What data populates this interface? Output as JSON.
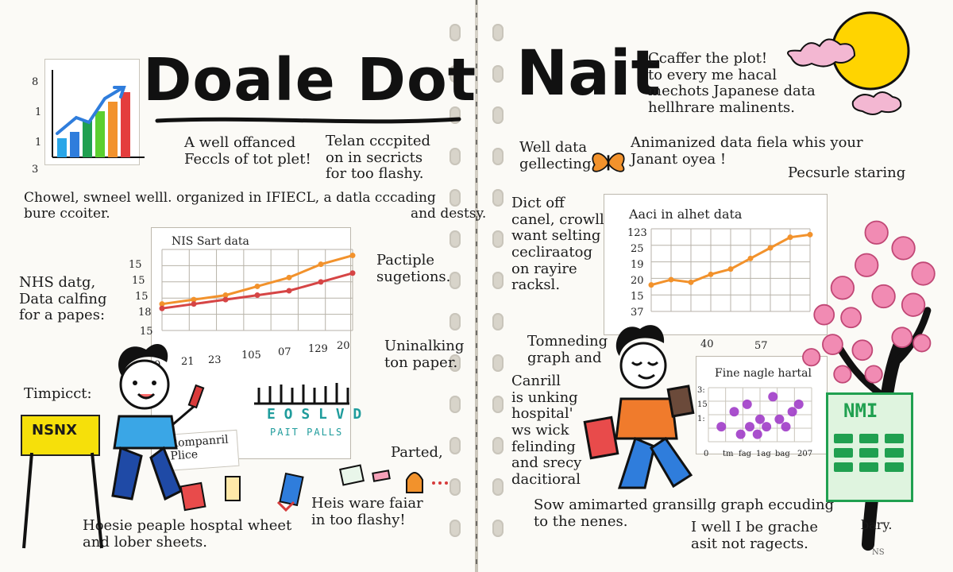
{
  "left": {
    "title": "Doale Dot",
    "notes": {
      "n1": "A well offanced\nFeccls of tot plet!",
      "n2": "Telan cccpited\non in secricts\nfor too flashy.",
      "n3": "Chowel, swneel welll. organized in IFIECL, a datla cccading\nbure ccoiter.                                                                      and destsy.",
      "n4": "NHS datg,\nData calfing\nfor a papes:",
      "n5": "Pactiple\nsugetions.",
      "n6": "Uninalking\nton paper.",
      "n7": "Timpicct:",
      "n8": "Parted,",
      "n9": "Heis ware faiar\nin too flashy!",
      "n10": "Hoesie peaple hosptal wheet\nand lober sheets."
    },
    "sign": "NSNX",
    "card_text": "Rompanril\nPlice",
    "ticker": "E O S L V D",
    "ticker_small": "PAIT PALLS",
    "mini_chart": {
      "yticks": [
        "8",
        "1",
        "1",
        "3"
      ]
    },
    "chart_title": "NIS Sart data",
    "chart_ticks_y": [
      "15",
      "15",
      "15",
      "18",
      "15"
    ],
    "chart_ticks_x": [
      "0",
      "21",
      "23",
      "105",
      "07",
      "129",
      "20"
    ]
  },
  "right": {
    "title": "Nait",
    "notes": {
      "r1": "Ccaffer the plot!\nto every me hacal\nmechots Japanese data\nhellhrare malinents.",
      "r2": "Well data\ngellecting",
      "r3": "Animanized data fiela whis your\nJanant oyea !",
      "r4": "Pecsurle staring",
      "r5": "Dict off\ncanel, crowll\nwant selting\ncecliraatog\non rayire\nracksl.",
      "r6": "Tomneding\ngraph and",
      "r7": "Canrill\nis unking\nhospital'\nws wick\nfelinding\nand srecy\ndacitioral",
      "r8": "Sow amimarted gransillg graph eccuding\nto the nenes.",
      "r9": "I well I be grache\nasit not ragects.",
      "r10": "bary."
    },
    "chart_title": "Aaci in alhet data",
    "chart_ticks_y": [
      "123",
      "25",
      "19",
      "20",
      "15",
      "37"
    ],
    "chart_ticks_x": [
      "40",
      "57"
    ],
    "inset_title": "Fine nagle hartal",
    "inset_ticks_y": [
      "3:",
      "15",
      "1:"
    ],
    "inset_ticks_x": [
      "0",
      "tm",
      "fag",
      "1ag",
      "bag",
      "207"
    ],
    "calc_text": "NMI",
    "tiny": "NS"
  },
  "chart_data": [
    {
      "type": "line",
      "title": "NIS Sart data",
      "x": [
        "0",
        "21",
        "23",
        "105",
        "07",
        "129",
        "20"
      ],
      "series": [
        {
          "values": [
            12,
            14,
            16,
            20,
            24,
            30,
            34
          ]
        },
        {
          "values": [
            10,
            12,
            14,
            16,
            18,
            22,
            26
          ]
        }
      ],
      "ylim": [
        0,
        36
      ]
    },
    {
      "type": "line",
      "title": "Aaci in alhet data",
      "x": [
        0,
        1,
        2,
        3,
        4,
        5,
        6,
        7,
        8
      ],
      "series": [
        {
          "values": [
            10,
            12,
            11,
            14,
            16,
            20,
            24,
            28,
            29
          ]
        }
      ],
      "ylim": [
        0,
        30
      ]
    },
    {
      "type": "scatter",
      "title": "Fine nagle hartal",
      "points": [
        [
          1,
          2
        ],
        [
          2,
          4
        ],
        [
          2.5,
          1
        ],
        [
          3,
          5
        ],
        [
          3.2,
          2
        ],
        [
          3.8,
          1
        ],
        [
          4,
          3
        ],
        [
          4.5,
          2
        ],
        [
          5,
          6
        ],
        [
          5.5,
          3
        ],
        [
          6,
          2
        ],
        [
          6.5,
          4
        ],
        [
          7,
          5
        ]
      ],
      "xlim": [
        0,
        8
      ],
      "ylim": [
        0,
        7
      ]
    }
  ],
  "colors": {
    "orange": "#f2922c",
    "red": "#d64545",
    "blue": "#2f7ddc",
    "green": "#20a050",
    "purple": "#a03cc8",
    "sun": "#ffd400",
    "pink": "#f18bb3",
    "cloud": "#f3b7d2"
  }
}
